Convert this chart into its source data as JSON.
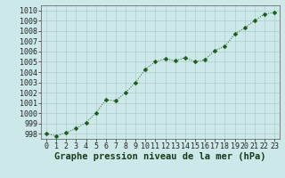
{
  "x": [
    0,
    1,
    2,
    3,
    4,
    5,
    6,
    7,
    8,
    9,
    10,
    11,
    12,
    13,
    14,
    15,
    16,
    17,
    18,
    19,
    20,
    21,
    22,
    23
  ],
  "y": [
    998.0,
    997.8,
    998.1,
    998.5,
    999.1,
    1000.0,
    1001.3,
    1001.2,
    1002.0,
    1003.0,
    1004.3,
    1005.0,
    1005.3,
    1005.1,
    1005.4,
    1005.0,
    1005.2,
    1006.1,
    1006.5,
    1007.7,
    1008.3,
    1009.0,
    1009.65,
    1009.8
  ],
  "line_color": "#1a5c1a",
  "marker": "D",
  "marker_size": 2.5,
  "bg_color": "#cde8e8",
  "grid_color": "#b0cece",
  "xlabel": "Graphe pression niveau de la mer (hPa)",
  "ylim": [
    997.5,
    1010.5
  ],
  "yticks": [
    998,
    999,
    1000,
    1001,
    1002,
    1003,
    1004,
    1005,
    1006,
    1007,
    1008,
    1009,
    1010
  ],
  "xticks": [
    0,
    1,
    2,
    3,
    4,
    5,
    6,
    7,
    8,
    9,
    10,
    11,
    12,
    13,
    14,
    15,
    16,
    17,
    18,
    19,
    20,
    21,
    22,
    23
  ],
  "xlabel_fontsize": 7.5,
  "tick_fontsize": 6.0
}
